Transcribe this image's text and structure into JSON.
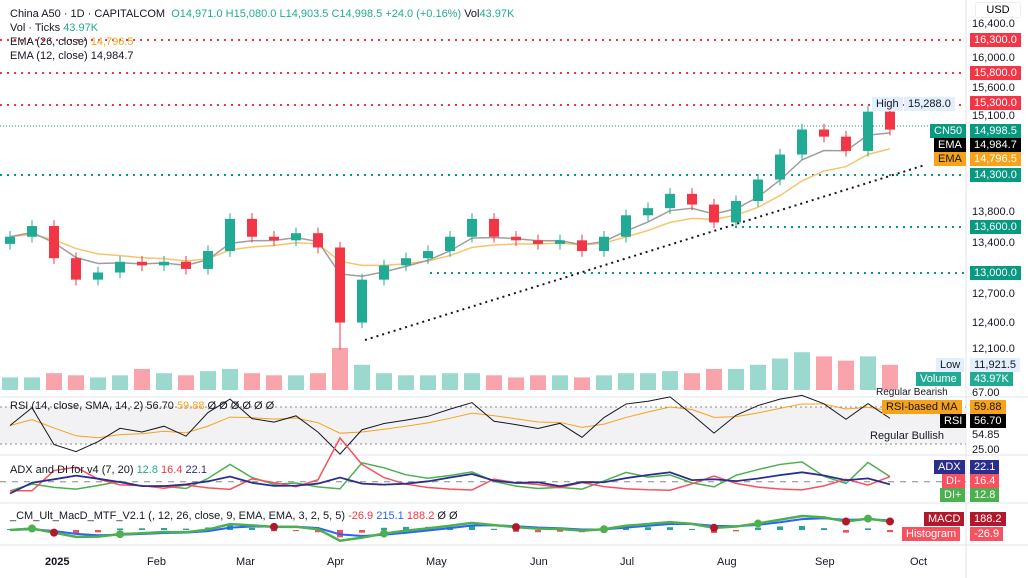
{
  "header": {
    "symbol": "China A50 · 1D · CAPITALCOM",
    "o": "O14,971.0",
    "h": "H15,080.0",
    "l": "L14,903.5",
    "c": "C14,998.5",
    "chg": "+24.0 (+0.16%)",
    "vol_label": "Vol",
    "vol": "43.97K"
  },
  "legends": {
    "vol_ticks": "Vol · Ticks",
    "vol_ticks_val": "43.97K",
    "ema26": "EMA (26, close)",
    "ema26_val": "14,796.5",
    "ema12": "EMA (12, close)",
    "ema12_val": "14,984.7",
    "rsi": "RSI (14, close, SMA, 14, 2)",
    "rsi_val": "56.70",
    "rsi_ma_val": "59.88",
    "rsi_rest": "Ø Ø Ø Ø Ø Ø",
    "adx": "ADX and DI for v4 (7, 20)",
    "adx_di_plus": "12.8",
    "adx_di_minus": "16.4",
    "adx_val": "22.1",
    "macd": "_CM_Ult_MacD_MTF_V2.1 (, 12, 26, close, 9, EMA, EMA, 3, 2, 5, 5)",
    "macd_hist": "-26.9",
    "macd_signal": "215.1",
    "macd_val": "188.2",
    "macd_rest": "Ø Ø"
  },
  "axis": {
    "currency": "USD",
    "ticks": [
      "16,400.0",
      "16,000.0",
      "15,600.0",
      "15,100.0",
      "13,800.0",
      "13,400.0",
      "12,700.0",
      "12,400.0",
      "12,100.0"
    ],
    "rsi_ticks": [
      "67.00",
      "54.85",
      "25.00"
    ]
  },
  "levels": [
    {
      "label": "16,300.0",
      "color": "#f23645"
    },
    {
      "label": "15,800.0",
      "color": "#f23645"
    },
    {
      "label": "15,300.0",
      "color": "#f23645"
    },
    {
      "label": "14,300.0",
      "color": "#089981"
    },
    {
      "label": "13,600.0",
      "color": "#089981"
    },
    {
      "label": "13,000.0",
      "color": "#089981"
    }
  ],
  "tags": {
    "high": "High",
    "high_val": "15,288.0",
    "cn50": "CN50",
    "cn50_val": "14,998.5",
    "ema": "EMA",
    "ema12_val": "14,984.7",
    "ema26_val": "14,796.5",
    "low": "Low",
    "low_val": "11,921.5",
    "volume": "Volume",
    "volume_val": "43.97K",
    "reg_bear": "Regular Bearish",
    "rsi_ma": "RSI-based MA",
    "rsi_ma_val": "59.88",
    "rsi": "RSI",
    "rsi_val": "56.70",
    "reg_bull": "Regular Bullish",
    "adx": "ADX",
    "adx_val": "22.1",
    "di_minus": "DI-",
    "di_minus_val": "16.4",
    "di_plus": "DI+",
    "di_plus_val": "12.8",
    "macd": "MACD",
    "macd_val": "188.2",
    "histogram": "Histogram",
    "histogram_val": "-26.9"
  },
  "colors": {
    "up": "#22ab94",
    "down": "#f23645",
    "ema12": "#9e9e9e",
    "ema26": "#f7c46c"
  },
  "chart_data": {
    "type": "candlestick",
    "title": "China A50 · 1D · CAPITALCOM",
    "ylabel": "USD",
    "ylim": [
      11800,
      16400
    ],
    "x_labels": [
      "2025",
      "Feb",
      "Mar",
      "Apr",
      "May",
      "Jun",
      "Jul",
      "Aug",
      "Sep",
      "Oct"
    ],
    "closes": [
      13500,
      13650,
      13200,
      12900,
      13000,
      13150,
      13100,
      13150,
      13050,
      13300,
      13750,
      13500,
      13450,
      13550,
      13350,
      12300,
      12900,
      13100,
      13200,
      13300,
      13500,
      13750,
      13500,
      13450,
      13400,
      13450,
      13300,
      13500,
      13800,
      13900,
      14100,
      13950,
      13700,
      14000,
      14300,
      14650,
      15000,
      14900,
      14700,
      15250,
      14998.5
    ],
    "volume_level": [
      0.3,
      0.3,
      0.4,
      0.35,
      0.3,
      0.35,
      0.5,
      0.4,
      0.35,
      0.45,
      0.5,
      0.4,
      0.35,
      0.35,
      0.4,
      1.0,
      0.6,
      0.4,
      0.35,
      0.35,
      0.4,
      0.4,
      0.35,
      0.3,
      0.35,
      0.35,
      0.3,
      0.35,
      0.4,
      0.4,
      0.45,
      0.4,
      0.5,
      0.5,
      0.6,
      0.75,
      0.9,
      0.8,
      0.7,
      0.8,
      0.6
    ],
    "rsi_range": [
      25,
      75
    ]
  }
}
